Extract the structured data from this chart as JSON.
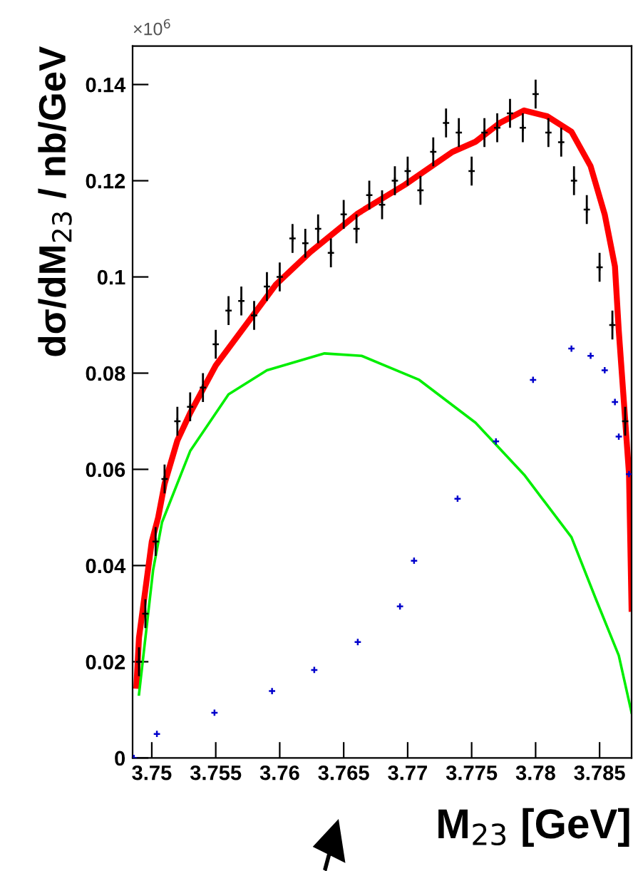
{
  "chart_data": {
    "type": "line",
    "xlabel": "M$_{23}$ [GeV]",
    "ylabel": "dσ/dM$_{23}$ / nb/GeV",
    "annotations": [
      "×10$^{6}$"
    ],
    "xlim": [
      3.7485,
      3.7875
    ],
    "xticks": [
      3.75,
      3.755,
      3.76,
      3.765,
      3.77,
      3.775,
      3.78,
      3.785
    ],
    "ylim": [
      0,
      0.148
    ],
    "yticks": [
      0,
      0.02,
      0.04,
      0.06,
      0.08,
      0.1,
      0.12,
      0.14
    ],
    "grid": false,
    "legend": false,
    "series": [
      {
        "type": "scatter",
        "color": "#000000",
        "marker": "cross",
        "x": [
          3.749,
          3.7495,
          3.7503,
          3.751,
          3.752,
          3.753,
          3.754,
          3.755,
          3.756,
          3.757,
          3.758,
          3.759,
          3.76,
          3.761,
          3.762,
          3.763,
          3.764,
          3.765,
          3.766,
          3.767,
          3.768,
          3.769,
          3.77,
          3.771,
          3.772,
          3.773,
          3.774,
          3.775,
          3.776,
          3.777,
          3.778,
          3.779,
          3.78,
          3.781,
          3.782,
          3.783,
          3.784,
          3.785,
          3.786,
          3.787
        ],
        "values": [
          0.02,
          0.03,
          0.045,
          0.058,
          0.07,
          0.073,
          0.077,
          0.086,
          0.093,
          0.095,
          0.092,
          0.098,
          0.1,
          0.108,
          0.107,
          0.11,
          0.105,
          0.113,
          0.11,
          0.117,
          0.115,
          0.12,
          0.122,
          0.118,
          0.126,
          0.132,
          0.13,
          0.122,
          0.13,
          0.131,
          0.134,
          0.131,
          0.138,
          0.13,
          0.128,
          0.12,
          0.114,
          0.102,
          0.09,
          0.07
        ],
        "errors": [
          0.003,
          0.003,
          0.003,
          0.003,
          0.003,
          0.003,
          0.003,
          0.003,
          0.003,
          0.003,
          0.003,
          0.003,
          0.003,
          0.003,
          0.003,
          0.003,
          0.003,
          0.003,
          0.003,
          0.003,
          0.003,
          0.003,
          0.003,
          0.003,
          0.003,
          0.003,
          0.003,
          0.003,
          0.003,
          0.003,
          0.003,
          0.003,
          0.003,
          0.003,
          0.003,
          0.003,
          0.003,
          0.003,
          0.003,
          0.003
        ]
      },
      {
        "color": "#ff0000",
        "x": [
          3.7488,
          3.749,
          3.7495,
          3.75,
          3.7505,
          3.751,
          3.752,
          3.753,
          3.755,
          3.7597,
          3.7624,
          3.7661,
          3.7698,
          3.7735,
          3.7753,
          3.7772,
          3.7791,
          3.7809,
          3.7828,
          3.7843,
          3.7854,
          3.7862,
          3.7865,
          3.7869,
          3.7873,
          3.7875
        ],
        "values": [
          0.015,
          0.025,
          0.035,
          0.045,
          0.05,
          0.057,
          0.066,
          0.0717,
          0.0816,
          0.0984,
          0.1052,
          0.1132,
          0.1192,
          0.126,
          0.1281,
          0.132,
          0.1346,
          0.1334,
          0.1302,
          0.123,
          0.113,
          0.1022,
          0.0888,
          0.074,
          0.059,
          0.031
        ]
      },
      {
        "color": "#00ee00",
        "x": [
          3.749,
          3.7501,
          3.7508,
          3.753,
          3.756,
          3.759,
          3.7635,
          3.7664,
          3.7709,
          3.7753,
          3.7791,
          3.7828,
          3.7847,
          3.7865,
          3.7875
        ],
        "values": [
          0.0132,
          0.039,
          0.049,
          0.0638,
          0.0756,
          0.0806,
          0.0841,
          0.0836,
          0.0786,
          0.0697,
          0.0589,
          0.0459,
          0.0331,
          0.0213,
          0.0094
        ]
      },
      {
        "type": "scatter",
        "color": "#0000cc",
        "marker": "cross",
        "x": [
          3.7486,
          3.7504,
          3.7549,
          3.7594,
          3.7627,
          3.7661,
          3.7694,
          3.7705,
          3.7739,
          3.7769,
          3.7798,
          3.7828,
          3.7843,
          3.7854,
          3.7862,
          3.7865,
          3.7873
        ],
        "values": [
          0.0,
          0.005,
          0.0094,
          0.0139,
          0.0183,
          0.0241,
          0.0315,
          0.041,
          0.0539,
          0.0658,
          0.0786,
          0.0851,
          0.0836,
          0.0806,
          0.074,
          0.0668,
          0.059
        ]
      }
    ]
  }
}
